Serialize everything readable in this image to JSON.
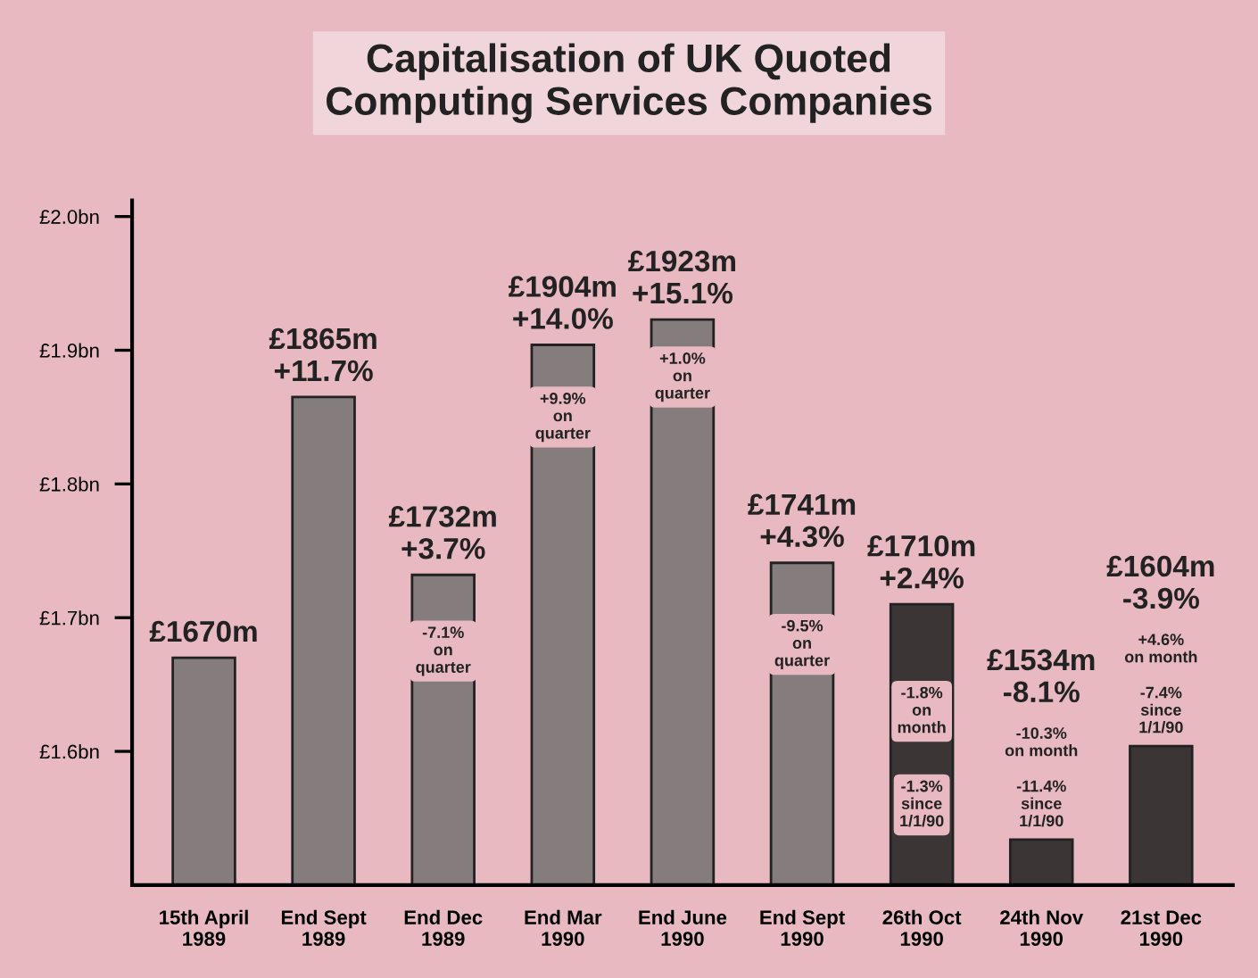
{
  "chart_data": {
    "type": "bar",
    "title": "Capitalisation of UK Quoted\nComputing Services Companies",
    "categories": [
      "15th April\n1989",
      "End Sept\n1989",
      "End Dec\n1989",
      "End Mar\n1990",
      "End June\n1990",
      "End Sept\n1990",
      "26th Oct\n1990",
      "24th Nov\n1990",
      "21st Dec\n1990"
    ],
    "values": [
      1.67,
      1.865,
      1.732,
      1.904,
      1.923,
      1.741,
      1.71,
      1.534,
      1.604
    ],
    "colors": [
      "#857c7e",
      "#857c7e",
      "#857c7e",
      "#857c7e",
      "#857c7e",
      "#857c7e",
      "#3b3536",
      "#3b3536",
      "#3b3536"
    ],
    "ylim": [
      1.5,
      2.012
    ],
    "yticks": [
      {
        "value": 1.6,
        "label": "£1.6bn"
      },
      {
        "value": 1.7,
        "label": "£1.7bn"
      },
      {
        "value": 1.8,
        "label": "£1.8bn"
      },
      {
        "value": 1.9,
        "label": "£1.9bn"
      },
      {
        "value": 2.0,
        "label": "£2.0bn"
      }
    ],
    "annotations": [
      {
        "text": "£1670m",
        "x": "15th April\n1989",
        "y": 1.67
      },
      {
        "text": "£1865m\n+11.7%",
        "x": "End Sept\n1989",
        "y": 1.865
      },
      {
        "text": "£1732m\n+3.7%",
        "x": "End Dec\n1989",
        "y": 1.732
      },
      {
        "text": "£1904m\n+14.0%",
        "x": "End Mar\n1990",
        "y": 1.904
      },
      {
        "text": "£1923m\n+15.1%",
        "x": "End June\n1990",
        "y": 1.923
      },
      {
        "text": "£1741m\n+4.3%",
        "x": "End Sept\n1990",
        "y": 1.741
      },
      {
        "text": "£1710m\n+2.4%",
        "x": "26th Oct\n1990",
        "y": 1.71
      },
      "£1534m\n-8.1%",
      "-10.3%\non month",
      {
        "text": "-11.4%\nsince\n1/1/90",
        "x": "24th Nov\n1990",
        "y": 1.534
      },
      "£1604m\n-3.9%",
      "+4.6%\non month",
      {
        "text": "-7.4%\nsince\n1/1/90",
        "x": "21st Dec\n1990",
        "y": 1.604
      },
      {
        "text": "-7.1%\non\nquarter",
        "x": "End Dec\n1989",
        "y": 1.675
      },
      {
        "text": "+9.9%\non\nquarter",
        "x": "End Mar\n1990",
        "y": 1.85
      },
      {
        "text": "+1.0%\non\nquarter",
        "x": "End June\n1990",
        "y": 1.88
      },
      {
        "text": "-9.5%\non\nquarter",
        "x": "End Sept\n1990",
        "y": 1.68
      },
      {
        "text": "-1.8%\non\nmonth",
        "x": "26th Oct\n1990",
        "y": 1.63
      },
      {
        "text": "-1.3%\nsince\n1/1/90",
        "x": "26th Oct\n1990",
        "y": 1.56
      }
    ],
    "grid": false,
    "legend": false
  }
}
